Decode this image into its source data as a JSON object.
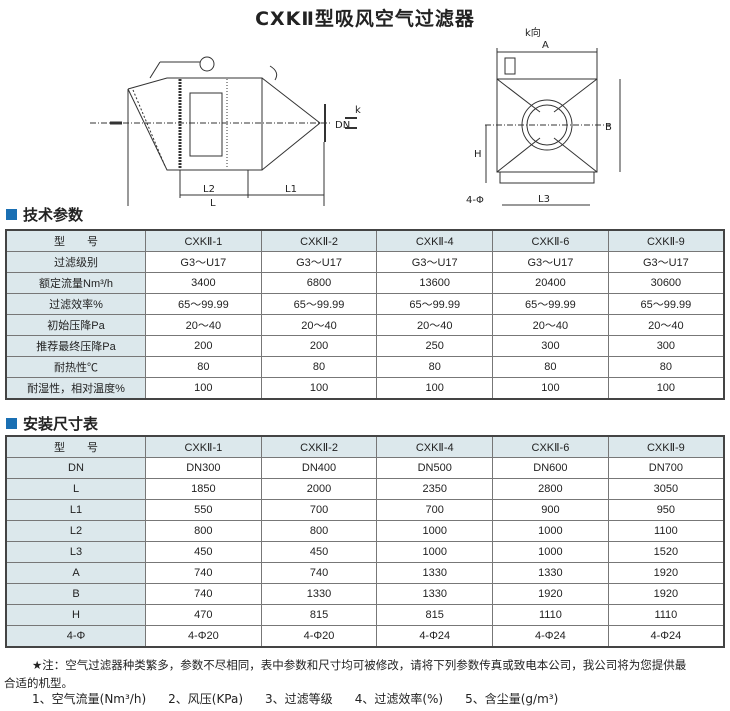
{
  "title": "CXKⅡ型吸风空气过滤器",
  "diagram": {
    "labels": {
      "k_dir": "k向",
      "A": "A",
      "B": "B",
      "H": "H",
      "L3": "L3",
      "holes": "4-Φ",
      "L": "L",
      "L1": "L1",
      "L2": "L2",
      "DN": "DN",
      "k": "k"
    }
  },
  "tech": {
    "heading": "技术参数",
    "rows": [
      [
        "型　　号",
        "CXKⅡ-1",
        "CXKⅡ-2",
        "CXKⅡ-4",
        "CXKⅡ-6",
        "CXKⅡ-9"
      ],
      [
        "过滤级别",
        "G3～U17",
        "G3～U17",
        "G3～U17",
        "G3～U17",
        "G3～U17"
      ],
      [
        "额定流量Nm³/h",
        "3400",
        "6800",
        "13600",
        "20400",
        "30600"
      ],
      [
        "过滤效率%",
        "65～99.99",
        "65～99.99",
        "65～99.99",
        "65～99.99",
        "65～99.99"
      ],
      [
        "初始压降Pa",
        "20～40",
        "20～40",
        "20～40",
        "20～40",
        "20～40"
      ],
      [
        "推荐最终压降Pa",
        "200",
        "200",
        "250",
        "300",
        "300"
      ],
      [
        "耐热性℃",
        "80",
        "80",
        "80",
        "80",
        "80"
      ],
      [
        "耐湿性，相对温度%",
        "100",
        "100",
        "100",
        "100",
        "100"
      ]
    ]
  },
  "dims": {
    "heading": "安装尺寸表",
    "rows": [
      [
        "型　　号",
        "CXKⅡ-1",
        "CXKⅡ-2",
        "CXKⅡ-4",
        "CXKⅡ-6",
        "CXKⅡ-9"
      ],
      [
        "DN",
        "DN300",
        "DN400",
        "DN500",
        "DN600",
        "DN700"
      ],
      [
        "L",
        "1850",
        "2000",
        "2350",
        "2800",
        "3050"
      ],
      [
        "L1",
        "550",
        "700",
        "700",
        "900",
        "950"
      ],
      [
        "L2",
        "800",
        "800",
        "1000",
        "1000",
        "1100"
      ],
      [
        "L3",
        "450",
        "450",
        "1000",
        "1000",
        "1520"
      ],
      [
        "A",
        "740",
        "740",
        "1330",
        "1330",
        "1920"
      ],
      [
        "B",
        "740",
        "1330",
        "1330",
        "1920",
        "1920"
      ],
      [
        "H",
        "470",
        "815",
        "815",
        "1110",
        "1110"
      ],
      [
        "4-Φ",
        "4-Φ20",
        "4-Φ20",
        "4-Φ24",
        "4-Φ24",
        "4-Φ24"
      ]
    ]
  },
  "note": {
    "line1": "★注：空气过滤器种类繁多，参数不尽相同，表中参数和尺寸均可被修改，请将下列参数传真或致电本公司，我公司将为您提供最",
    "line2": "合适的机型。",
    "items": [
      "1、空气流量(Nm³/h)",
      "2、风压(KPa)",
      "3、过滤等级",
      "4、过滤效率(%)",
      "5、含尘量(g/m³)"
    ]
  },
  "colors": {
    "accent": "#1a6fb3",
    "header_bg": "#dce8ec"
  }
}
